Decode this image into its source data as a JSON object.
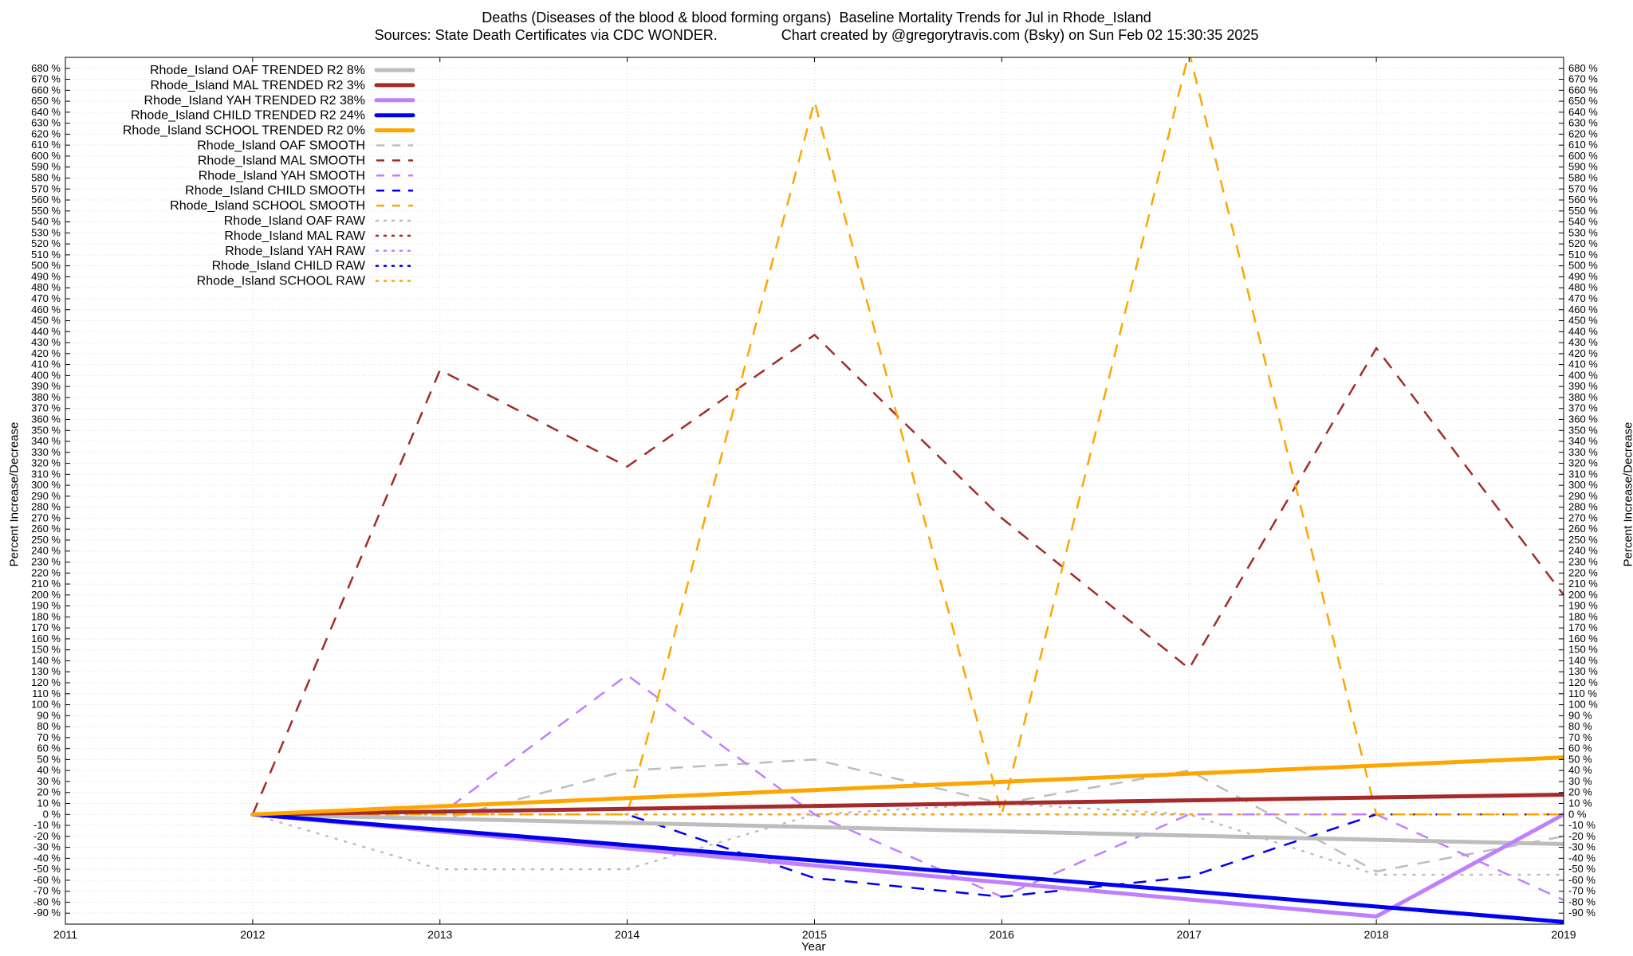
{
  "chart_data": {
    "type": "line",
    "title": "Deaths (Diseases of the blood & blood forming organs)  Baseline Mortality Trends for Jul in Rhode_Island",
    "subtitle_left": "Sources: State Death Certificates via CDC WONDER.",
    "subtitle_right": "Chart created by @gregorytravis.com (Bsky) on Sun Feb 02 15:30:35 2025",
    "xlabel": "Year",
    "ylabel": "Percent Increase/Decrease",
    "y2label": "Percent Increase/Decrease",
    "xlim": [
      2011,
      2019
    ],
    "ylim": [
      -100,
      690
    ],
    "x_ticks": [
      2011,
      2012,
      2013,
      2014,
      2015,
      2016,
      2017,
      2018,
      2019
    ],
    "y_ticks_start": -90,
    "y_ticks_end": 680,
    "y_ticks_step": 10,
    "y_tick_suffix": " %",
    "grid": true,
    "legend_position": "top-left",
    "series": [
      {
        "name": "Rhode_Island OAF TRENDED R2  8%",
        "style": "solid",
        "color": "#bdbdbd",
        "x": [
          2012,
          2019
        ],
        "y": [
          0,
          -27
        ]
      },
      {
        "name": "Rhode_Island MAL TRENDED R2  3%",
        "style": "solid",
        "color": "#a52a2a",
        "x": [
          2012,
          2019
        ],
        "y": [
          0,
          18
        ]
      },
      {
        "name": "Rhode_Island YAH TRENDED R2  38%",
        "style": "solid",
        "color": "#bf7fff",
        "x": [
          2012,
          2018,
          2019
        ],
        "y": [
          0,
          -93,
          0
        ]
      },
      {
        "name": "Rhode_Island CHILD TRENDED R2  24%",
        "style": "solid",
        "color": "#0000ee",
        "x": [
          2012,
          2019
        ],
        "y": [
          0,
          -98
        ]
      },
      {
        "name": "Rhode_Island SCHOOL TRENDED R2  0%",
        "style": "solid",
        "color": "#ffa500",
        "x": [
          2012,
          2019
        ],
        "y": [
          0,
          52
        ]
      },
      {
        "name": "Rhode_Island OAF SMOOTH",
        "style": "dash",
        "color": "#bdbdbd",
        "x": [
          2012,
          2013,
          2014,
          2015,
          2016,
          2017,
          2018,
          2019
        ],
        "y": [
          0,
          -5,
          40,
          50,
          10,
          40,
          -52,
          -20
        ]
      },
      {
        "name": "Rhode_Island MAL SMOOTH",
        "style": "dash",
        "color": "#a52a2a",
        "x": [
          2012,
          2013,
          2014,
          2015,
          2016,
          2017,
          2018,
          2019
        ],
        "y": [
          0,
          405,
          317,
          437,
          270,
          133,
          425,
          200
        ]
      },
      {
        "name": "Rhode_Island YAH SMOOTH",
        "style": "dash",
        "color": "#bf7fff",
        "x": [
          2012,
          2013,
          2014,
          2015,
          2016,
          2017,
          2018,
          2019
        ],
        "y": [
          0,
          0,
          127,
          0,
          -75,
          0,
          0,
          -78
        ]
      },
      {
        "name": "Rhode_Island CHILD SMOOTH",
        "style": "dash",
        "color": "#0000ee",
        "x": [
          2012,
          2014,
          2015,
          2016,
          2017,
          2018,
          2019
        ],
        "y": [
          0,
          0,
          -58,
          -75,
          -57,
          0,
          0
        ]
      },
      {
        "name": "Rhode_Island SCHOOL SMOOTH",
        "style": "dash",
        "color": "#ffa500",
        "x": [
          2012,
          2014,
          2015,
          2016,
          2017,
          2018,
          2019
        ],
        "y": [
          0,
          0,
          650,
          0,
          695,
          0,
          0
        ]
      },
      {
        "name": "Rhode_Island OAF RAW",
        "style": "dot",
        "color": "#bdbdbd",
        "x": [
          2012,
          2013,
          2014,
          2015,
          2016,
          2017,
          2018,
          2019
        ],
        "y": [
          0,
          -50,
          -50,
          0,
          10,
          0,
          -55,
          -55
        ]
      },
      {
        "name": "Rhode_Island MAL RAW",
        "style": "dot",
        "color": "#a52a2a",
        "x": [
          2012,
          2019
        ],
        "y": [
          0,
          0
        ]
      },
      {
        "name": "Rhode_Island YAH RAW",
        "style": "dot",
        "color": "#bf7fff",
        "x": [
          2012,
          2019
        ],
        "y": [
          0,
          0
        ]
      },
      {
        "name": "Rhode_Island CHILD RAW",
        "style": "dot",
        "color": "#0000ee",
        "x": [
          2012,
          2019
        ],
        "y": [
          0,
          0
        ]
      },
      {
        "name": "Rhode_Island SCHOOL RAW",
        "style": "dot",
        "color": "#ffa500",
        "x": [
          2012,
          2019
        ],
        "y": [
          0,
          0
        ]
      }
    ]
  }
}
